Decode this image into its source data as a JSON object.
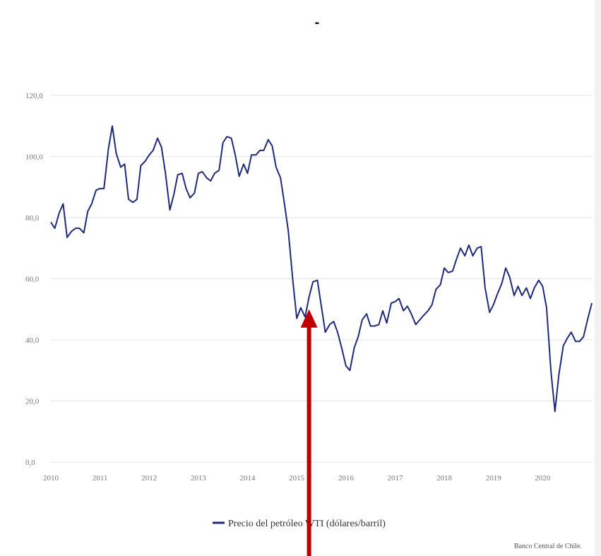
{
  "chart_data": {
    "type": "line",
    "title": "-",
    "xlabel": "",
    "ylabel": "",
    "ylim": [
      0,
      120
    ],
    "y_ticks": [
      "0,0",
      "20,0",
      "40,0",
      "60,0",
      "80,0",
      "100,0",
      "120,0"
    ],
    "x_ticks": [
      "2010",
      "2011",
      "2012",
      "2013",
      "2014",
      "2015",
      "2016",
      "2017",
      "2018",
      "2019",
      "2020"
    ],
    "grid": true,
    "legend_position": "bottom-center",
    "series": [
      {
        "name": "Precio del petróleo WTI (dólares/barril)",
        "color": "#1f2a78",
        "points": [
          [
            2010.0,
            78.5
          ],
          [
            2010.08,
            76.5
          ],
          [
            2010.17,
            81.5
          ],
          [
            2010.25,
            84.5
          ],
          [
            2010.33,
            73.5
          ],
          [
            2010.42,
            75.5
          ],
          [
            2010.5,
            76.5
          ],
          [
            2010.58,
            76.5
          ],
          [
            2010.67,
            75.0
          ],
          [
            2010.75,
            82.0
          ],
          [
            2010.83,
            84.5
          ],
          [
            2010.92,
            89.0
          ],
          [
            2011.0,
            89.5
          ],
          [
            2011.08,
            89.5
          ],
          [
            2011.17,
            102.5
          ],
          [
            2011.25,
            110.0
          ],
          [
            2011.33,
            101.0
          ],
          [
            2011.42,
            96.5
          ],
          [
            2011.5,
            97.5
          ],
          [
            2011.58,
            86.0
          ],
          [
            2011.67,
            85.0
          ],
          [
            2011.75,
            86.0
          ],
          [
            2011.83,
            97.0
          ],
          [
            2011.92,
            98.5
          ],
          [
            2012.0,
            100.5
          ],
          [
            2012.08,
            102.0
          ],
          [
            2012.17,
            106.0
          ],
          [
            2012.25,
            103.0
          ],
          [
            2012.33,
            94.5
          ],
          [
            2012.42,
            82.5
          ],
          [
            2012.5,
            87.5
          ],
          [
            2012.58,
            94.0
          ],
          [
            2012.67,
            94.5
          ],
          [
            2012.75,
            89.5
          ],
          [
            2012.83,
            86.5
          ],
          [
            2012.92,
            88.0
          ],
          [
            2013.0,
            94.5
          ],
          [
            2013.08,
            95.0
          ],
          [
            2013.17,
            93.0
          ],
          [
            2013.25,
            92.0
          ],
          [
            2013.33,
            94.5
          ],
          [
            2013.42,
            95.5
          ],
          [
            2013.5,
            104.5
          ],
          [
            2013.58,
            106.5
          ],
          [
            2013.67,
            106.0
          ],
          [
            2013.75,
            100.5
          ],
          [
            2013.83,
            93.5
          ],
          [
            2013.92,
            97.5
          ],
          [
            2014.0,
            94.5
          ],
          [
            2014.08,
            100.5
          ],
          [
            2014.17,
            100.5
          ],
          [
            2014.25,
            102.0
          ],
          [
            2014.33,
            102.0
          ],
          [
            2014.42,
            105.5
          ],
          [
            2014.5,
            103.5
          ],
          [
            2014.58,
            96.5
          ],
          [
            2014.67,
            93.0
          ],
          [
            2014.75,
            84.5
          ],
          [
            2014.83,
            75.5
          ],
          [
            2014.92,
            59.5
          ],
          [
            2015.0,
            47.0
          ],
          [
            2015.08,
            50.5
          ],
          [
            2015.17,
            47.5
          ],
          [
            2015.25,
            54.0
          ],
          [
            2015.33,
            59.0
          ],
          [
            2015.42,
            59.5
          ],
          [
            2015.5,
            51.0
          ],
          [
            2015.58,
            42.5
          ],
          [
            2015.67,
            45.0
          ],
          [
            2015.75,
            46.0
          ],
          [
            2015.83,
            42.5
          ],
          [
            2015.92,
            37.0
          ],
          [
            2016.0,
            31.5
          ],
          [
            2016.08,
            30.0
          ],
          [
            2016.17,
            37.5
          ],
          [
            2016.25,
            41.0
          ],
          [
            2016.33,
            46.5
          ],
          [
            2016.42,
            48.5
          ],
          [
            2016.5,
            44.5
          ],
          [
            2016.58,
            44.5
          ],
          [
            2016.67,
            45.0
          ],
          [
            2016.75,
            49.5
          ],
          [
            2016.83,
            45.5
          ],
          [
            2016.92,
            52.0
          ],
          [
            2017.0,
            52.5
          ],
          [
            2017.08,
            53.5
          ],
          [
            2017.17,
            49.5
          ],
          [
            2017.25,
            51.0
          ],
          [
            2017.33,
            48.5
          ],
          [
            2017.42,
            45.0
          ],
          [
            2017.5,
            46.5
          ],
          [
            2017.58,
            48.0
          ],
          [
            2017.67,
            49.5
          ],
          [
            2017.75,
            51.5
          ],
          [
            2017.83,
            56.5
          ],
          [
            2017.92,
            58.0
          ],
          [
            2018.0,
            63.5
          ],
          [
            2018.08,
            62.0
          ],
          [
            2018.17,
            62.5
          ],
          [
            2018.25,
            66.5
          ],
          [
            2018.33,
            70.0
          ],
          [
            2018.42,
            67.5
          ],
          [
            2018.5,
            71.0
          ],
          [
            2018.58,
            67.5
          ],
          [
            2018.67,
            70.0
          ],
          [
            2018.75,
            70.5
          ],
          [
            2018.83,
            57.0
          ],
          [
            2018.92,
            49.0
          ],
          [
            2019.0,
            51.5
          ],
          [
            2019.08,
            55.0
          ],
          [
            2019.17,
            58.5
          ],
          [
            2019.25,
            63.5
          ],
          [
            2019.33,
            60.5
          ],
          [
            2019.42,
            54.5
          ],
          [
            2019.5,
            57.5
          ],
          [
            2019.58,
            54.5
          ],
          [
            2019.67,
            57.0
          ],
          [
            2019.75,
            53.5
          ],
          [
            2019.83,
            57.0
          ],
          [
            2019.92,
            59.5
          ],
          [
            2020.0,
            57.5
          ],
          [
            2020.08,
            50.5
          ],
          [
            2020.17,
            29.5
          ],
          [
            2020.25,
            16.5
          ],
          [
            2020.33,
            28.5
          ],
          [
            2020.42,
            38.0
          ],
          [
            2020.5,
            40.5
          ],
          [
            2020.58,
            42.5
          ],
          [
            2020.67,
            39.5
          ],
          [
            2020.75,
            39.5
          ],
          [
            2020.83,
            41.0
          ],
          [
            2020.92,
            47.0
          ],
          [
            2021.0,
            52.0
          ]
        ]
      }
    ],
    "annotation": {
      "type": "arrow",
      "color": "#c00000",
      "x": 2015.25,
      "y": 50.0
    }
  },
  "footer": {
    "credit": "Banco Central de Chile."
  }
}
